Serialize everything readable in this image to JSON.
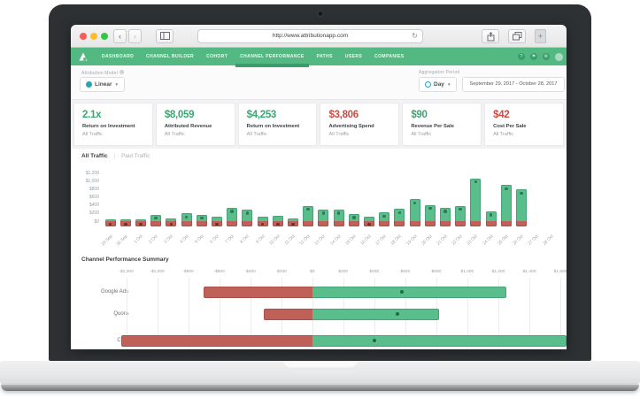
{
  "browser": {
    "url": "http://www.attributionapp.com",
    "new_tab_label": "+",
    "icons": {
      "back": "‹",
      "forward": "›",
      "reload": "↻"
    }
  },
  "nav": {
    "items": [
      {
        "label": "DASHBOARD",
        "active": false
      },
      {
        "label": "CHANNEL BUILDER",
        "active": false
      },
      {
        "label": "COHORT",
        "active": false
      },
      {
        "label": "CHANNEL PERFORMANCE",
        "active": true
      },
      {
        "label": "PATHS",
        "active": false
      },
      {
        "label": "USERS",
        "active": false
      },
      {
        "label": "COMPANIES",
        "active": false
      }
    ],
    "icons": [
      {
        "name": "help-icon",
        "glyph": "?"
      },
      {
        "name": "notifications-icon",
        "glyph": "⚑"
      },
      {
        "name": "settings-icon",
        "glyph": "⚙"
      }
    ]
  },
  "filters": {
    "model_label": "Attribution Model",
    "model_value": "Linear",
    "aggregation_label": "Aggregation Period",
    "aggregation_value": "Day",
    "date_range": "September 29, 2017  -  October 28, 2017"
  },
  "kpis": [
    {
      "value": "2.1x",
      "label": "Return on Investment",
      "scope": "All Traffic",
      "color": "#36a96e"
    },
    {
      "value": "$8,059",
      "label": "Attributed Revenue",
      "scope": "All Traffic",
      "color": "#36a96e"
    },
    {
      "value": "$4,253",
      "label": "Return on Investment",
      "scope": "All Traffic",
      "color": "#36a96e"
    },
    {
      "value": "$3,806",
      "label": "Advertising Spend",
      "scope": "All Traffic",
      "color": "#cc4b42"
    },
    {
      "value": "$90",
      "label": "Revenue Per Sale",
      "scope": "All Traffic",
      "color": "#36a96e"
    },
    {
      "value": "$42",
      "label": "Cost Per Sale",
      "scope": "All Traffic",
      "color": "#cc4b42"
    }
  ],
  "traffic_tabs": [
    {
      "label": "All Traffic",
      "active": true
    },
    {
      "label": "Paid Traffic",
      "active": false
    }
  ],
  "summary": {
    "title": "Channel Performance Summary"
  },
  "chart_data": [
    {
      "type": "bar",
      "title": "",
      "categories": [
        "29 Sep",
        "30 Sep",
        "1 Oct",
        "2 Oct",
        "3 Oct",
        "4 Oct",
        "5 Oct",
        "6 Oct",
        "7 Oct",
        "8 Oct",
        "9 Oct",
        "10 Oct",
        "11 Oct",
        "12 Oct",
        "13 Oct",
        "14 Oct",
        "15 Oct",
        "16 Oct",
        "17 Oct",
        "18 Oct",
        "19 Oct",
        "20 Oct",
        "21 Oct",
        "22 Oct",
        "23 Oct",
        "24 Oct",
        "25 Oct",
        "26 Oct",
        "27 Oct",
        "28 Oct"
      ],
      "series": [
        {
          "name": "Attributed Revenue",
          "color": "#5abd8c",
          "values": [
            50,
            50,
            50,
            160,
            60,
            190,
            160,
            120,
            330,
            280,
            100,
            140,
            70,
            380,
            280,
            280,
            170,
            100,
            210,
            300,
            540,
            400,
            330,
            380,
            1060,
            240,
            890,
            780,
            0,
            0
          ]
        },
        {
          "name": "Advertising Spend",
          "color": "#bf6159",
          "values": [
            -140,
            -140,
            -140,
            -140,
            -140,
            -140,
            -140,
            -140,
            -140,
            -140,
            -140,
            -140,
            -140,
            -140,
            -140,
            -140,
            -140,
            -140,
            -140,
            -140,
            -140,
            -140,
            -140,
            -140,
            -140,
            -140,
            -140,
            -140,
            0,
            0
          ]
        }
      ],
      "ylim": [
        -200,
        1250
      ],
      "yticks": [
        0,
        200,
        400,
        600,
        800,
        1000,
        1200
      ],
      "legend": "none",
      "grid": false
    },
    {
      "type": "bar-horizontal",
      "title": "Channel Performance Summary",
      "categories": [
        "Google Ads",
        "Quora",
        "CPC"
      ],
      "series": [
        {
          "name": "Advertising Spend",
          "color": "#bf6159",
          "values": [
            -700,
            -310,
            -1230
          ]
        },
        {
          "name": "Attributed Revenue",
          "color": "#5abd8c",
          "values": [
            1250,
            820,
            1650
          ]
        },
        {
          "name": "Profit marker",
          "color": "#1f6b45",
          "values": [
            580,
            550,
            400
          ]
        }
      ],
      "xlim": [
        -1300,
        1640
      ],
      "xticks": [
        -1200,
        -1000,
        -800,
        -600,
        -400,
        -200,
        0,
        200,
        400,
        600,
        800,
        1000,
        1200,
        1400,
        1600
      ],
      "grid": true,
      "legend": "none"
    }
  ],
  "colors": {
    "brand_green": "#54b882",
    "nav_active": "#3d9c6b",
    "positive": "#36a96e",
    "negative": "#cc4b42",
    "bar_green": "#5abd8c",
    "bar_red": "#bf6159"
  }
}
